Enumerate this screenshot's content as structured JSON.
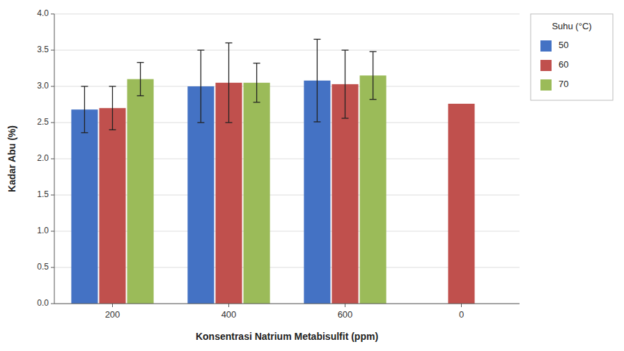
{
  "chart_data": {
    "type": "bar",
    "categories": [
      "200",
      "400",
      "600",
      "0"
    ],
    "series": [
      {
        "name": "50",
        "color": "#4472C4",
        "values": [
          2.68,
          3.0,
          3.08,
          null
        ],
        "errors": [
          0.32,
          0.5,
          0.57,
          null
        ]
      },
      {
        "name": "60",
        "color": "#C0504D",
        "values": [
          2.7,
          3.05,
          3.03,
          2.76
        ],
        "errors": [
          0.3,
          0.55,
          0.47,
          null
        ]
      },
      {
        "name": "70",
        "color": "#9BBB59",
        "values": [
          3.1,
          3.05,
          3.15,
          null
        ],
        "errors": [
          0.23,
          0.27,
          0.33,
          null
        ]
      }
    ],
    "xlabel": "Konsentrasi Natrium Metabisulfit (ppm)",
    "ylabel": "Kadar Abu (%)",
    "legend_title": "Suhu (°C)",
    "ylim": [
      0,
      4
    ],
    "yticks": [
      {
        "value": 0,
        "label": "0.0"
      },
      {
        "value": 0.5,
        "label": "0.5"
      },
      {
        "value": 1.0,
        "label": "1.0"
      },
      {
        "value": 1.5,
        "label": "1.5"
      },
      {
        "value": 2.0,
        "label": "2.0"
      },
      {
        "value": 2.5,
        "label": "2.5"
      },
      {
        "value": 3.0,
        "label": "3.0"
      },
      {
        "value": 3.5,
        "label": "3.5"
      },
      {
        "value": 4.0,
        "label": "4.0"
      }
    ],
    "grid": true,
    "legend": "right"
  }
}
